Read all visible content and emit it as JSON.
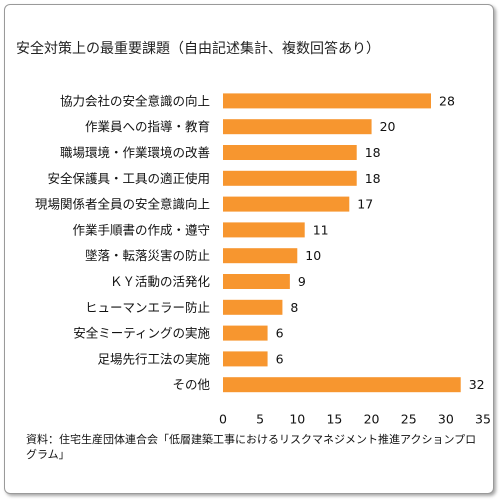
{
  "chart_data": {
    "type": "bar",
    "orientation": "horizontal",
    "title": "安全対策上の最重要課題（自由記述集計、複数回答あり）",
    "categories": [
      "協力会社の安全意識の向上",
      "作業員への指導・教育",
      "職場環境・作業環境の改善",
      "安全保護具・工具の適正使用",
      "現場関係者全員の安全意識向上",
      "作業手順書の作成・遵守",
      "墜落・転落災害の防止",
      "ＫＹ活動の活発化",
      "ヒューマンエラー防止",
      "安全ミーティングの実施",
      "足場先行工法の実施",
      "その他"
    ],
    "values": [
      28,
      20,
      18,
      18,
      17,
      11,
      10,
      9,
      8,
      6,
      6,
      32
    ],
    "xlim": [
      0,
      35
    ],
    "xticks": [
      "0",
      "5",
      "10",
      "15",
      "20",
      "25",
      "30",
      "35"
    ],
    "bar_color": "#F7962F",
    "grid": false
  },
  "source": "資料：住宅生産団体連合会「低層建築工事におけるリスクマネジメント推進アクションプログラム」"
}
